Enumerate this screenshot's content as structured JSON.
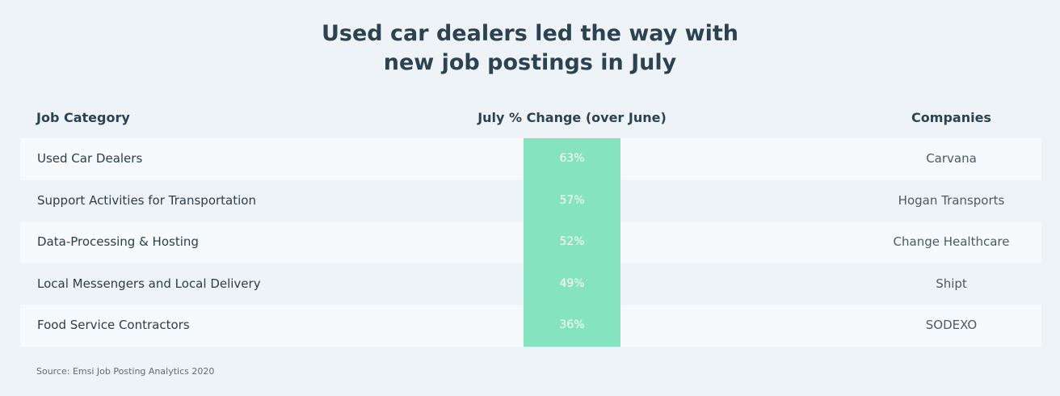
{
  "title_lines": [
    "Used car dealers led the way with",
    "new job postings in July"
  ],
  "headers": {
    "category": "Job Category",
    "change": "July % Change (over June)",
    "companies": "Companies"
  },
  "source": "Source: Emsi Job Posting Analytics 2020",
  "colors": {
    "highlight": "#86e3bf",
    "text": "#2c4250",
    "background": "#eef3f8"
  },
  "chart_data": {
    "type": "table",
    "title": "Used car dealers led the way with new job postings in July",
    "columns": [
      "Job Category",
      "July % Change (over June)",
      "Companies"
    ],
    "rows": [
      {
        "category": "Used Car Dealers",
        "change": "63%",
        "value": 63,
        "company": "Carvana"
      },
      {
        "category": "Support Activities for Transportation",
        "change": "57%",
        "value": 57,
        "company": "Hogan Transports"
      },
      {
        "category": "Data-Processing & Hosting",
        "change": "52%",
        "value": 52,
        "company": "Change Healthcare"
      },
      {
        "category": "Local Messengers and Local Delivery",
        "change": "49%",
        "value": 49,
        "company": "Shipt"
      },
      {
        "category": "Food Service Contractors",
        "change": "36%",
        "value": 36,
        "company": "SODEXO"
      }
    ]
  }
}
